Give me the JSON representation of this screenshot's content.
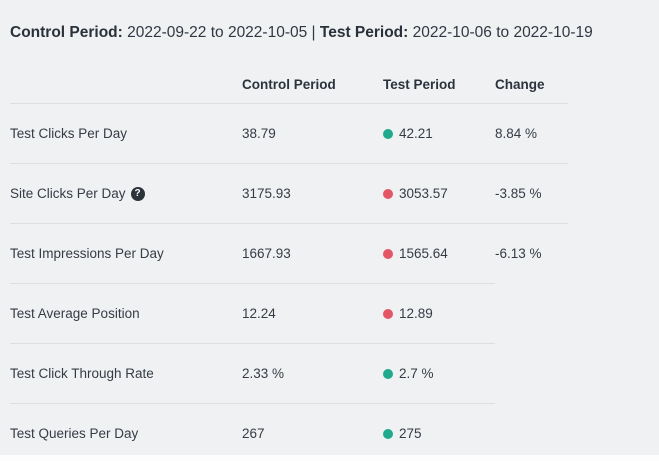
{
  "period_header": {
    "control_label": "Control Period:",
    "control_dates": " 2022-09-22 to 2022-10-05 ",
    "separator": "| ",
    "test_label": "Test Period:",
    "test_dates": " 2022-10-06 to 2022-10-19"
  },
  "table": {
    "headers": {
      "metric": "",
      "control": "Control Period",
      "test": "Test Period",
      "change": "Change"
    },
    "rows": [
      {
        "metric": "Test Clicks Per Day",
        "control": "38.79",
        "test": "42.21",
        "dot_color": "#1faa8d",
        "change": "8.84 %"
      },
      {
        "metric": "Site Clicks Per Day",
        "help_glyph": "?",
        "control": "3175.93",
        "test": "3053.57",
        "dot_color": "#e55665",
        "change": "-3.85 %"
      },
      {
        "metric": "Test Impressions Per Day",
        "control": "1667.93",
        "test": "1565.64",
        "dot_color": "#e55665",
        "change": "-6.13 %"
      },
      {
        "metric": "Test Average Position",
        "control": "12.24",
        "test": "12.89",
        "dot_color": "#e55665",
        "change": ""
      },
      {
        "metric": "Test Click Through Rate",
        "control": "2.33 %",
        "test": "2.7 %",
        "dot_color": "#1faa8d",
        "change": ""
      },
      {
        "metric": "Test Queries Per Day",
        "control": "267",
        "test": "275",
        "dot_color": "#1faa8d",
        "change": ""
      }
    ]
  },
  "colors": {
    "background": "#f0f1f3",
    "positive_dot": "#1faa8d",
    "negative_dot": "#e55665",
    "divider": "#dddedf",
    "text": "#343c45"
  }
}
